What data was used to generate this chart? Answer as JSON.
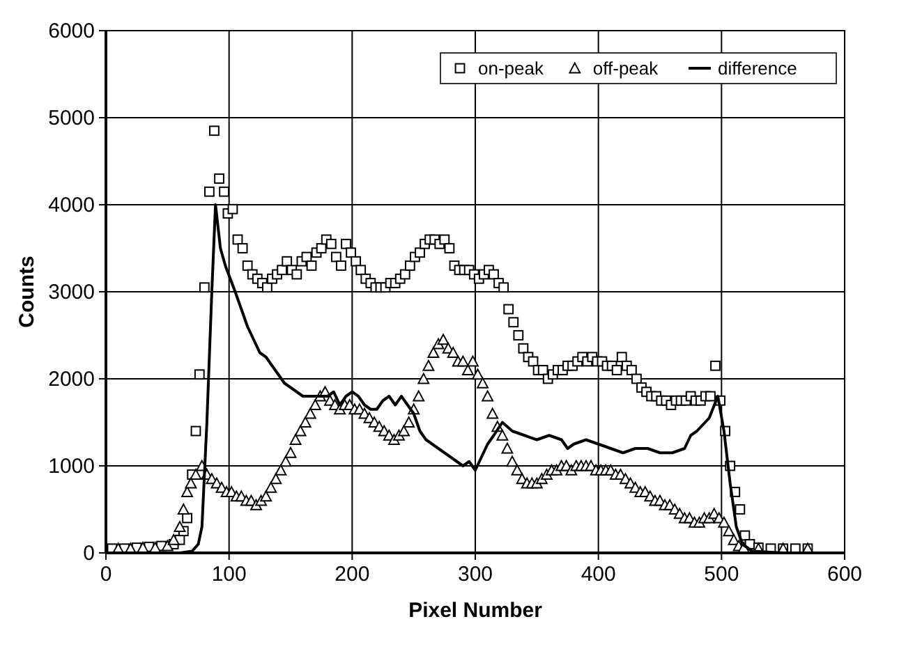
{
  "chart_data": {
    "type": "line",
    "xlabel": "Pixel Number",
    "ylabel": "Counts",
    "xlim": [
      0,
      600
    ],
    "ylim": [
      0,
      6000
    ],
    "xticks": [
      0,
      100,
      200,
      300,
      400,
      500,
      600
    ],
    "yticks": [
      0,
      1000,
      2000,
      3000,
      4000,
      5000,
      6000
    ],
    "grid": true,
    "legend": "top right",
    "series": [
      {
        "name": "on-peak",
        "type": "scatter",
        "marker": "square",
        "color": "#000000",
        "x": [
          5,
          15,
          25,
          35,
          45,
          55,
          60,
          63,
          66,
          70,
          73,
          76,
          80,
          84,
          88,
          92,
          96,
          99,
          103,
          107,
          111,
          115,
          119,
          123,
          127,
          131,
          135,
          139,
          143,
          147,
          151,
          155,
          159,
          163,
          167,
          171,
          175,
          179,
          183,
          187,
          191,
          195,
          199,
          203,
          207,
          211,
          215,
          219,
          223,
          227,
          231,
          235,
          239,
          243,
          247,
          251,
          255,
          259,
          263,
          267,
          271,
          275,
          279,
          283,
          287,
          291,
          295,
          299,
          303,
          307,
          311,
          315,
          319,
          323,
          327,
          331,
          335,
          339,
          343,
          347,
          351,
          355,
          359,
          363,
          367,
          371,
          375,
          379,
          383,
          387,
          391,
          395,
          399,
          403,
          407,
          411,
          415,
          419,
          423,
          427,
          431,
          435,
          439,
          443,
          447,
          451,
          455,
          459,
          463,
          467,
          471,
          475,
          479,
          483,
          487,
          491,
          495,
          499,
          503,
          507,
          511,
          515,
          519,
          523,
          530,
          540,
          550,
          560,
          570
        ],
        "values": [
          50,
          50,
          60,
          70,
          80,
          100,
          150,
          250,
          400,
          900,
          1400,
          2050,
          3050,
          4150,
          4850,
          4300,
          4150,
          3900,
          3950,
          3600,
          3500,
          3300,
          3200,
          3150,
          3100,
          3050,
          3150,
          3200,
          3250,
          3350,
          3250,
          3200,
          3350,
          3400,
          3300,
          3450,
          3500,
          3600,
          3550,
          3400,
          3300,
          3550,
          3450,
          3350,
          3250,
          3150,
          3100,
          3050,
          3050,
          3050,
          3100,
          3100,
          3150,
          3200,
          3300,
          3400,
          3450,
          3550,
          3600,
          3600,
          3550,
          3600,
          3500,
          3300,
          3250,
          3250,
          3250,
          3200,
          3150,
          3200,
          3250,
          3200,
          3100,
          3050,
          2800,
          2650,
          2500,
          2350,
          2250,
          2200,
          2100,
          2100,
          2000,
          2050,
          2100,
          2100,
          2150,
          2150,
          2200,
          2250,
          2200,
          2250,
          2200,
          2200,
          2150,
          2150,
          2100,
          2250,
          2150,
          2100,
          2000,
          1900,
          1850,
          1800,
          1800,
          1750,
          1750,
          1700,
          1750,
          1750,
          1750,
          1800,
          1750,
          1750,
          1800,
          1800,
          2150,
          1750,
          1400,
          1000,
          700,
          500,
          200,
          100,
          60,
          50,
          50,
          50,
          50
        ]
      },
      {
        "name": "off-peak",
        "type": "scatter",
        "marker": "triangle",
        "color": "#000000",
        "x": [
          10,
          20,
          30,
          40,
          50,
          55,
          60,
          63,
          66,
          69,
          73,
          78,
          82,
          86,
          90,
          94,
          98,
          102,
          106,
          110,
          114,
          118,
          122,
          126,
          130,
          134,
          138,
          142,
          146,
          150,
          154,
          158,
          162,
          166,
          170,
          174,
          178,
          182,
          186,
          190,
          194,
          198,
          202,
          206,
          210,
          214,
          218,
          222,
          226,
          230,
          234,
          238,
          242,
          246,
          250,
          254,
          258,
          262,
          266,
          270,
          274,
          278,
          282,
          286,
          290,
          294,
          298,
          302,
          306,
          310,
          314,
          318,
          322,
          326,
          330,
          334,
          338,
          342,
          346,
          350,
          354,
          358,
          362,
          366,
          370,
          374,
          378,
          382,
          386,
          390,
          394,
          398,
          402,
          406,
          410,
          414,
          418,
          422,
          426,
          430,
          434,
          438,
          442,
          446,
          450,
          454,
          458,
          462,
          466,
          470,
          474,
          478,
          482,
          486,
          490,
          494,
          498,
          502,
          506,
          510,
          514,
          518,
          530,
          550,
          570
        ],
        "values": [
          50,
          50,
          60,
          60,
          80,
          150,
          300,
          500,
          700,
          800,
          900,
          1000,
          900,
          850,
          800,
          750,
          700,
          700,
          650,
          650,
          600,
          600,
          550,
          600,
          650,
          750,
          850,
          950,
          1050,
          1150,
          1300,
          1400,
          1500,
          1600,
          1700,
          1800,
          1850,
          1750,
          1700,
          1650,
          1700,
          1700,
          1650,
          1650,
          1600,
          1550,
          1500,
          1450,
          1400,
          1350,
          1300,
          1350,
          1400,
          1500,
          1650,
          1800,
          2000,
          2150,
          2300,
          2400,
          2450,
          2350,
          2300,
          2200,
          2200,
          2100,
          2200,
          2050,
          1950,
          1800,
          1600,
          1450,
          1350,
          1200,
          1050,
          950,
          850,
          800,
          800,
          800,
          850,
          900,
          950,
          950,
          1000,
          1000,
          950,
          1000,
          1000,
          1000,
          1000,
          950,
          950,
          950,
          950,
          900,
          900,
          850,
          800,
          750,
          700,
          700,
          650,
          600,
          600,
          550,
          550,
          500,
          450,
          400,
          400,
          350,
          350,
          400,
          400,
          450,
          400,
          350,
          250,
          150,
          80,
          60,
          50,
          50,
          50
        ]
      },
      {
        "name": "difference",
        "marker": "none",
        "line_style": "solid",
        "color": "#000000",
        "x": [
          0,
          20,
          40,
          60,
          70,
          75,
          78,
          82,
          86,
          89,
          93,
          97,
          101,
          105,
          110,
          115,
          120,
          125,
          130,
          135,
          140,
          145,
          150,
          160,
          170,
          180,
          185,
          190,
          195,
          200,
          205,
          210,
          215,
          220,
          225,
          230,
          235,
          240,
          245,
          250,
          255,
          260,
          270,
          280,
          290,
          295,
          300,
          305,
          310,
          315,
          322,
          330,
          340,
          350,
          360,
          370,
          375,
          380,
          390,
          400,
          410,
          420,
          430,
          440,
          450,
          460,
          470,
          475,
          480,
          490,
          497,
          502,
          507,
          512,
          517,
          525,
          550,
          575
        ],
        "values": [
          0,
          0,
          0,
          0,
          20,
          100,
          300,
          1500,
          3000,
          4000,
          3500,
          3300,
          3150,
          3000,
          2800,
          2600,
          2450,
          2300,
          2250,
          2150,
          2050,
          1950,
          1900,
          1800,
          1800,
          1800,
          1850,
          1700,
          1800,
          1850,
          1800,
          1700,
          1650,
          1650,
          1750,
          1800,
          1700,
          1800,
          1700,
          1600,
          1400,
          1300,
          1200,
          1100,
          1000,
          1050,
          950,
          1100,
          1250,
          1350,
          1500,
          1400,
          1350,
          1300,
          1350,
          1300,
          1200,
          1250,
          1300,
          1250,
          1200,
          1150,
          1200,
          1200,
          1150,
          1150,
          1200,
          1350,
          1400,
          1550,
          1800,
          1400,
          800,
          300,
          100,
          20,
          0,
          0
        ]
      }
    ]
  }
}
